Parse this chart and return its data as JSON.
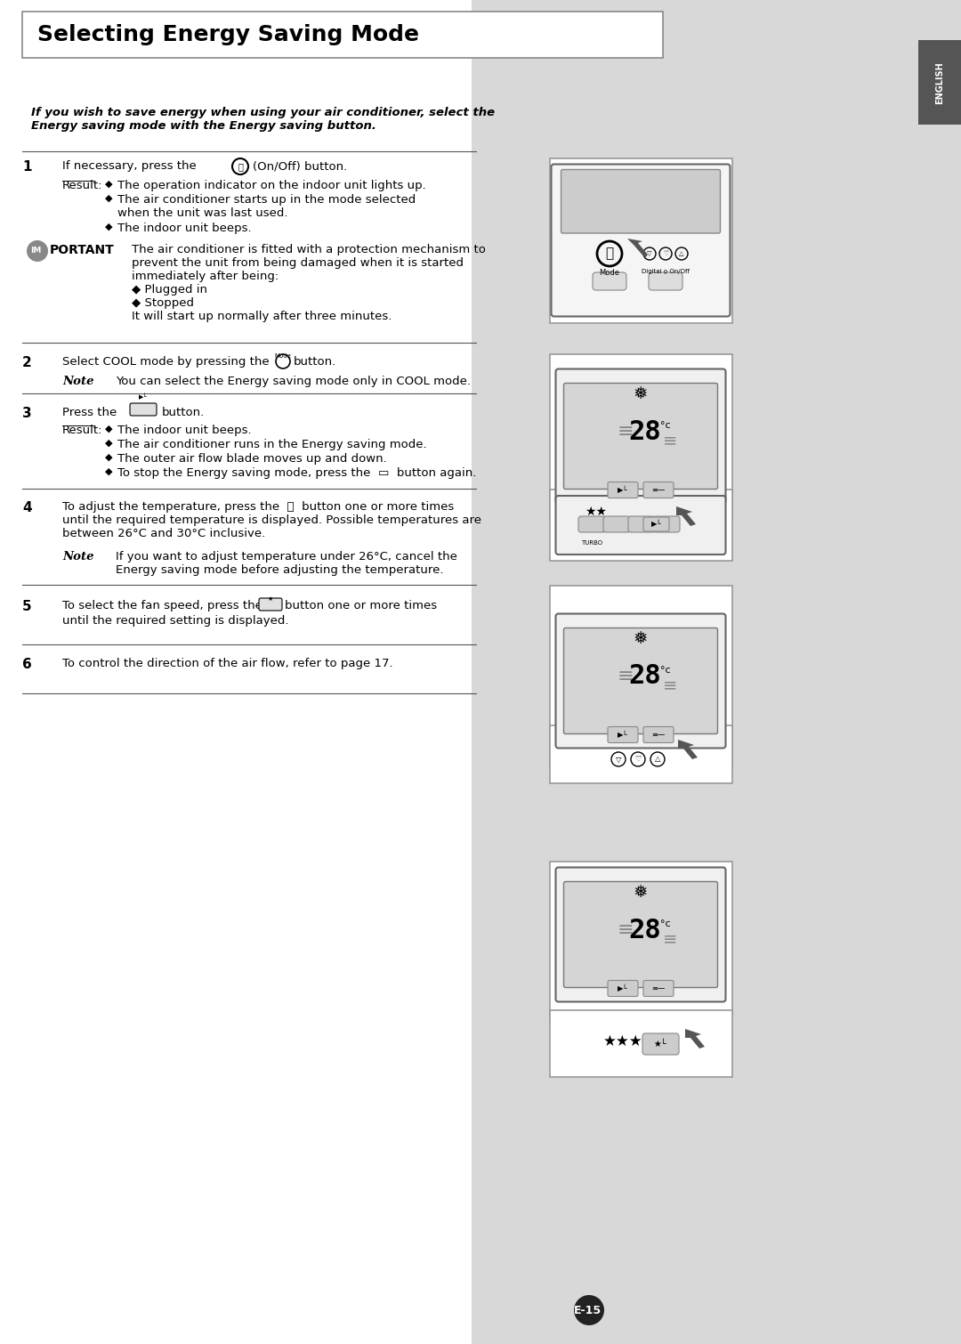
{
  "title": "Selecting Energy Saving Mode",
  "bg_color": "#ffffff",
  "right_panel_color": "#d8d8d8",
  "tab_color": "#555555",
  "tab_text": "ENGLISH",
  "intro_text": "If you wish to save energy when using your air conditioner, select the\nEnergy saving mode with the Energy saving button.",
  "steps": [
    {
      "num": "1",
      "main": "If necessary, press the  ⓘ  (On/Off) button.",
      "result_label": "Result:",
      "bullets": [
        "The operation indicator on the indoor unit lights up.",
        "The air conditioner starts up in the mode selected\nwhen the unit was last used.",
        "The indoor unit beeps."
      ]
    },
    {
      "num": "2",
      "main": "Select COOL mode by pressing the  ○  button.",
      "note": "You can select the Energy saving mode only in COOL mode."
    },
    {
      "num": "3",
      "main": "Press the  ▭  button.",
      "result_label": "Result:",
      "bullets": [
        "The indoor unit beeps.",
        "The air conditioner runs in the Energy saving mode.",
        "The outer air flow blade moves up and down.",
        "To stop the Energy saving mode, press the  ▭  button again."
      ]
    },
    {
      "num": "4",
      "main": "To adjust the temperature, press the  Ⓐ  button one or more times\nuntil the required temperature is displayed. Possible temperatures are\nbetween 26°C and 30°C inclusive.",
      "note": "If you want to adjust temperature under 26°C, cancel the\nEnergy saving mode before adjusting the temperature."
    },
    {
      "num": "5",
      "main": "To select the fan speed, press the  ○  button one or more times\nuntil the required setting is displayed."
    },
    {
      "num": "6",
      "main": "To control the direction of the air flow, refer to page 17."
    }
  ],
  "important_text": "The air conditioner is fitted with a protection mechanism to\nprevent the unit from being damaged when it is started\nimmediately after being:\n◆ Plugged in\n◆ Stopped\nIt will start up normally after three minutes.",
  "page_number": "E-15"
}
